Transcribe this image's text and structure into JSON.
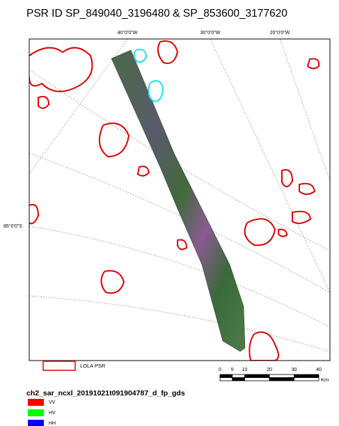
{
  "title": "PSR ID SP_849040_3196480 & SP_853600_3177620",
  "map": {
    "graticule_labels": {
      "top": [
        "40°0'0\"W",
        "30°0'0\"W",
        "20°0'0\"W"
      ],
      "left": [
        "85°0'0\"S"
      ]
    }
  },
  "legend": {
    "psr_label": "LOLA PSR",
    "layer_name": "ch2_sar_ncxl_20191021t091904787_d_fp_gds",
    "bands": [
      "VV",
      "HV",
      "HH"
    ]
  },
  "scale_bar": {
    "ticks": [
      0,
      5,
      10,
      20,
      30,
      40
    ],
    "unit": "Km"
  }
}
